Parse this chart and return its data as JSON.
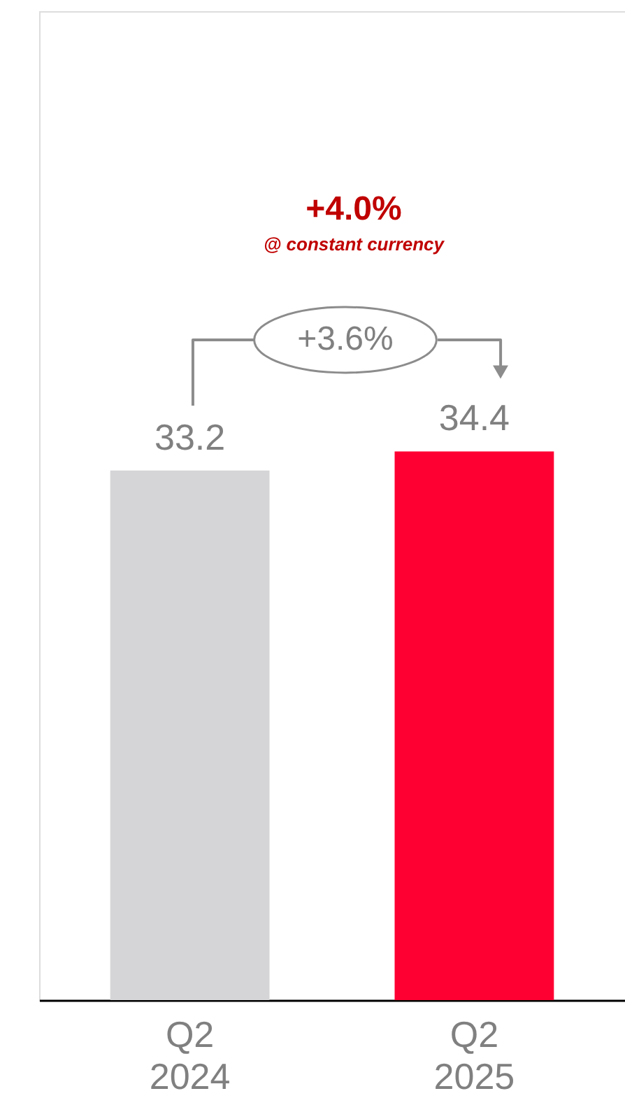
{
  "chart_data": {
    "type": "bar",
    "categories": [
      "Q2 2024",
      "Q2 2025"
    ],
    "values": [
      33.2,
      34.4
    ],
    "colors": [
      "#d5d5d7",
      "#ff0033"
    ],
    "ylim": [
      0,
      62
    ],
    "tick_labels": "x",
    "data_labels": true,
    "grid": false,
    "annotations": [
      "+4.0%",
      "@ constant currency",
      "+3.6%"
    ]
  }
}
